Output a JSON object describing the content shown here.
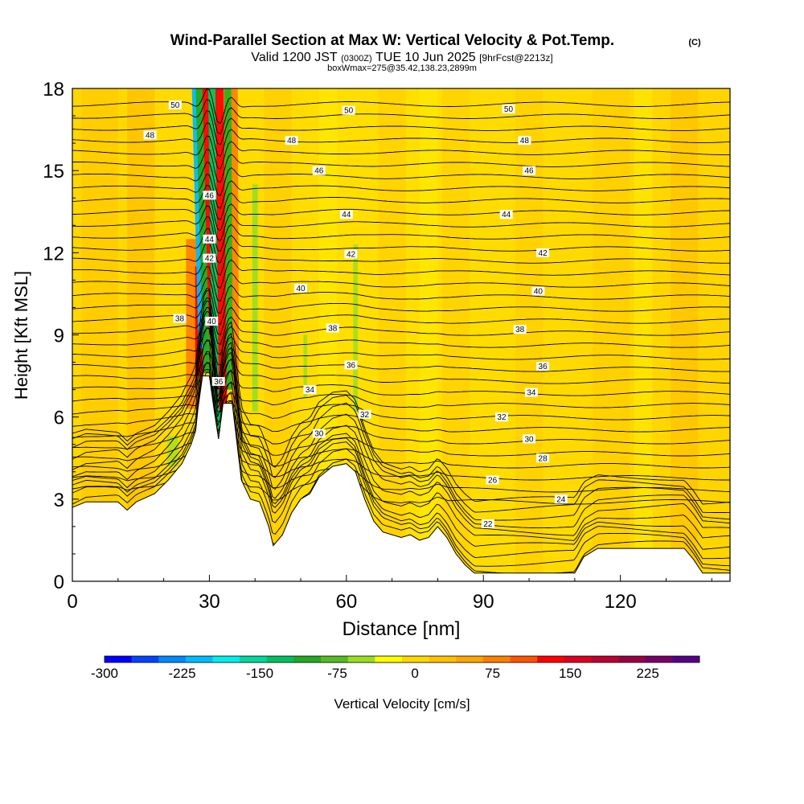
{
  "header": {
    "title": "Wind-Parallel Section at Max W: Vertical Velocity & Pot.Temp.",
    "copyright": "(C)",
    "valid_prefix": "Valid 1200 JST",
    "valid_utc": "(0300Z)",
    "valid_date": "TUE 10 Jun 2025",
    "forecast": "[9hrFcst@2213z]",
    "box_info": "boxWmax=275@35.42,138.23,2899m"
  },
  "chart_data": {
    "type": "heatmap",
    "xlabel": "Distance [nm]",
    "ylabel": "Height [Kft MSL]",
    "xlim": [
      0,
      144
    ],
    "ylim": [
      0,
      18
    ],
    "x_ticks": [
      0,
      30,
      60,
      90,
      120
    ],
    "y_ticks": [
      0,
      3,
      6,
      9,
      12,
      15,
      18
    ],
    "colorbar": {
      "label": "Vertical Velocity [cm/s]",
      "tick_labels": [
        "-300",
        "-225",
        "-150",
        "-75",
        "0",
        "75",
        "150",
        "225"
      ],
      "tick_values": [
        -300,
        -225,
        -150,
        -75,
        0,
        75,
        150,
        225
      ],
      "range": [
        -300,
        275
      ],
      "colors": [
        "#0000ff",
        "#0044ff",
        "#0088ff",
        "#00bbff",
        "#00eeee",
        "#00d6a0",
        "#00c060",
        "#22a822",
        "#55bb22",
        "#99dd22",
        "#ffff00",
        "#ffd700",
        "#ffc000",
        "#ffa500",
        "#ff8000",
        "#ff5500",
        "#ff0000",
        "#dd0022",
        "#bb0033",
        "#990044",
        "#770066",
        "#550088"
      ]
    },
    "terrain_kft": [
      [
        0,
        2.7
      ],
      [
        3,
        2.9
      ],
      [
        10,
        2.9
      ],
      [
        12,
        2.6
      ],
      [
        14,
        2.9
      ],
      [
        18,
        3.2
      ],
      [
        21,
        3.7
      ],
      [
        24,
        4.3
      ],
      [
        26,
        5.0
      ],
      [
        27,
        5.5
      ],
      [
        27.5,
        6.3
      ],
      [
        28.5,
        7.5
      ],
      [
        30,
        7.5
      ],
      [
        31,
        6.3
      ],
      [
        32,
        5.2
      ],
      [
        33,
        6.5
      ],
      [
        35,
        6.5
      ],
      [
        37,
        3.7
      ],
      [
        39,
        3.0
      ],
      [
        41,
        2.9
      ],
      [
        43,
        2.0
      ],
      [
        44,
        1.3
      ],
      [
        46,
        1.7
      ],
      [
        48,
        2.5
      ],
      [
        50,
        3.0
      ],
      [
        52,
        3.2
      ],
      [
        54,
        3.8
      ],
      [
        57,
        4.2
      ],
      [
        60,
        4.3
      ],
      [
        62,
        4.0
      ],
      [
        64,
        3.0
      ],
      [
        66,
        2.2
      ],
      [
        68,
        1.8
      ],
      [
        72,
        1.6
      ],
      [
        74,
        1.7
      ],
      [
        76,
        1.5
      ],
      [
        78,
        1.6
      ],
      [
        80,
        2.0
      ],
      [
        82,
        1.6
      ],
      [
        84,
        1.0
      ],
      [
        86,
        0.6
      ],
      [
        88,
        0.3
      ],
      [
        110,
        0.3
      ],
      [
        112,
        0.9
      ],
      [
        115,
        1.2
      ],
      [
        120,
        1.2
      ],
      [
        128,
        1.2
      ],
      [
        134,
        1.2
      ],
      [
        136,
        0.8
      ],
      [
        138,
        0.3
      ],
      [
        144,
        0.3
      ]
    ],
    "theta_labels": [
      {
        "text": "50",
        "x": 22.5,
        "y": 17.4
      },
      {
        "text": "48",
        "x": 17,
        "y": 16.3
      },
      {
        "text": "50",
        "x": 60.5,
        "y": 17.2
      },
      {
        "text": "50",
        "x": 95.5,
        "y": 17.25
      },
      {
        "text": "48",
        "x": 48,
        "y": 16.1
      },
      {
        "text": "48",
        "x": 99,
        "y": 16.1
      },
      {
        "text": "46",
        "x": 54,
        "y": 15.0
      },
      {
        "text": "46",
        "x": 100,
        "y": 15.0
      },
      {
        "text": "46",
        "x": 30,
        "y": 14.1
      },
      {
        "text": "44",
        "x": 60,
        "y": 13.4
      },
      {
        "text": "44",
        "x": 95,
        "y": 13.4
      },
      {
        "text": "44",
        "x": 30,
        "y": 12.5
      },
      {
        "text": "42",
        "x": 30,
        "y": 11.8
      },
      {
        "text": "42",
        "x": 61,
        "y": 11.95
      },
      {
        "text": "42",
        "x": 103,
        "y": 12.0
      },
      {
        "text": "40",
        "x": 50,
        "y": 10.7
      },
      {
        "text": "40",
        "x": 102,
        "y": 10.6
      },
      {
        "text": "40",
        "x": 30.5,
        "y": 9.5
      },
      {
        "text": "38",
        "x": 23.5,
        "y": 9.6
      },
      {
        "text": "38",
        "x": 57,
        "y": 9.25
      },
      {
        "text": "38",
        "x": 98,
        "y": 9.2
      },
      {
        "text": "36",
        "x": 61,
        "y": 7.9
      },
      {
        "text": "36",
        "x": 103,
        "y": 7.85
      },
      {
        "text": "36",
        "x": 32,
        "y": 7.3
      },
      {
        "text": "34",
        "x": 52,
        "y": 7.0
      },
      {
        "text": "34",
        "x": 100.5,
        "y": 6.9
      },
      {
        "text": "32",
        "x": 64,
        "y": 6.1
      },
      {
        "text": "32",
        "x": 94,
        "y": 6.0
      },
      {
        "text": "30",
        "x": 54,
        "y": 5.4
      },
      {
        "text": "30",
        "x": 100,
        "y": 5.2
      },
      {
        "text": "28",
        "x": 103,
        "y": 4.5
      },
      {
        "text": "26",
        "x": 92,
        "y": 3.7
      },
      {
        "text": "24",
        "x": 107,
        "y": 3.0
      },
      {
        "text": "22",
        "x": 91,
        "y": 2.1
      }
    ]
  }
}
